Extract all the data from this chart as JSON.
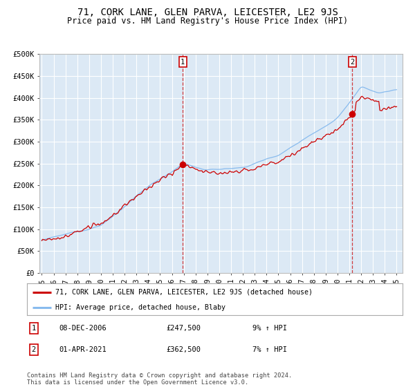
{
  "title": "71, CORK LANE, GLEN PARVA, LEICESTER, LE2 9JS",
  "subtitle": "Price paid vs. HM Land Registry's House Price Index (HPI)",
  "ylim": [
    0,
    500000
  ],
  "yticks": [
    0,
    50000,
    100000,
    150000,
    200000,
    250000,
    300000,
    350000,
    400000,
    450000,
    500000
  ],
  "ytick_labels": [
    "£0",
    "£50K",
    "£100K",
    "£150K",
    "£200K",
    "£250K",
    "£300K",
    "£350K",
    "£400K",
    "£450K",
    "£500K"
  ],
  "xlim_start": 1994.8,
  "xlim_end": 2025.5,
  "background_color": "#dce9f5",
  "grid_color": "#ffffff",
  "transaction1_x": 2006.92,
  "transaction1_y": 247500,
  "transaction2_x": 2021.25,
  "transaction2_y": 362500,
  "legend_label1": "71, CORK LANE, GLEN PARVA, LEICESTER, LE2 9JS (detached house)",
  "legend_label2": "HPI: Average price, detached house, Blaby",
  "annotation1_date": "08-DEC-2006",
  "annotation1_price": "£247,500",
  "annotation1_hpi": "9% ↑ HPI",
  "annotation2_date": "01-APR-2021",
  "annotation2_price": "£362,500",
  "annotation2_hpi": "7% ↑ HPI",
  "footer": "Contains HM Land Registry data © Crown copyright and database right 2024.\nThis data is licensed under the Open Government Licence v3.0.",
  "line_red_color": "#cc0000",
  "line_blue_color": "#88bbee",
  "title_fontsize": 10,
  "subtitle_fontsize": 8.5
}
